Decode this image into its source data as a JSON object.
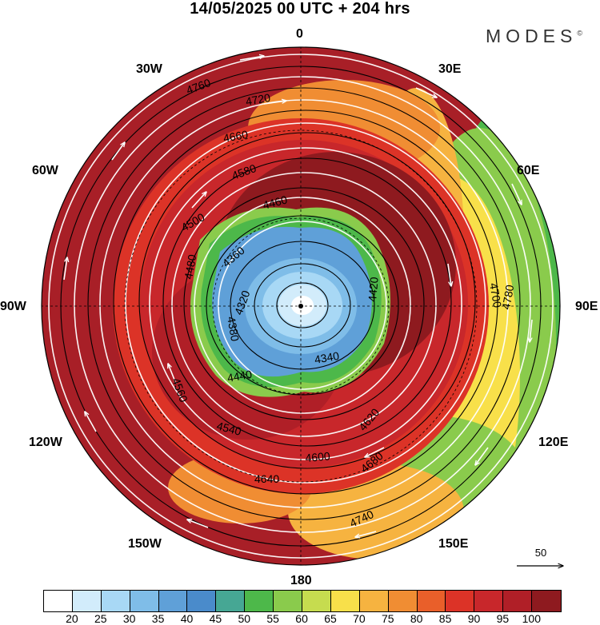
{
  "title": "14/05/2025  00 UTC  + 204 hrs",
  "brand": {
    "name": "MODES",
    "mark": "©"
  },
  "longitude_labels": [
    {
      "key": "n",
      "text": "0"
    },
    {
      "key": "e30",
      "text": "30E"
    },
    {
      "key": "e60",
      "text": "60E"
    },
    {
      "key": "e90",
      "text": "90E"
    },
    {
      "key": "e120",
      "text": "120E"
    },
    {
      "key": "e150",
      "text": "150E"
    },
    {
      "key": "s",
      "text": "180"
    },
    {
      "key": "w150",
      "text": "150W"
    },
    {
      "key": "w120",
      "text": "120W"
    },
    {
      "key": "w90",
      "text": "90W"
    },
    {
      "key": "w60",
      "text": "60W"
    },
    {
      "key": "w30",
      "text": "30W"
    }
  ],
  "contour_labels": [
    "4760",
    "4720",
    "4660",
    "4580",
    "4500",
    "4460",
    "4360",
    "4320",
    "4340",
    "4380",
    "4440",
    "4540",
    "4600",
    "4640",
    "4680",
    "4740",
    "4780",
    "4700",
    "4620",
    "4560",
    "4480",
    "4420"
  ],
  "vector_reference": {
    "value": "50"
  },
  "colorbar": {
    "colors": [
      "#ffffff",
      "#d2ecfb",
      "#a8d8f5",
      "#7fbde8",
      "#5fa0d8",
      "#4a8bcb",
      "#46a794",
      "#4db84a",
      "#8acb4c",
      "#c6dc4f",
      "#f8e04a",
      "#f6b340",
      "#f08d33",
      "#e95f2a",
      "#dc3327",
      "#c8272b",
      "#b01f27",
      "#8e1a1f"
    ],
    "tick_labels": [
      "20",
      "25",
      "30",
      "35",
      "40",
      "45",
      "50",
      "55",
      "60",
      "65",
      "70",
      "75",
      "80",
      "85",
      "90",
      "95",
      "100"
    ]
  }
}
